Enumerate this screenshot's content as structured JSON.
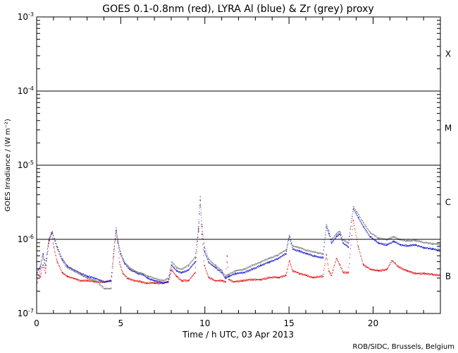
{
  "chart_data": {
    "type": "scatter",
    "title": "GOES 0.1-0.8nm (red), LYRA Al (blue) & Zr (grey) proxy",
    "xlabel": "Time / h UTC, 03 Apr 2013",
    "ylabel": "GOES Irradiance / (W m⁻²)",
    "credit": "ROB/SIDC, Brussels, Belgium",
    "xlim": [
      0,
      24
    ],
    "ylim": [
      1e-07,
      0.001
    ],
    "yscale": "log",
    "x_ticks": [
      {
        "value": 0,
        "label": "0"
      },
      {
        "value": 5,
        "label": "5"
      },
      {
        "value": 10,
        "label": "10"
      },
      {
        "value": 15,
        "label": "15"
      },
      {
        "value": 20,
        "label": "20"
      }
    ],
    "y_ticks": [
      {
        "value": 0.001,
        "base": "10",
        "exp": "-3"
      },
      {
        "value": 0.0001,
        "base": "10",
        "exp": "-4"
      },
      {
        "value": 1e-05,
        "base": "10",
        "exp": "-5"
      },
      {
        "value": 1e-06,
        "base": "10",
        "exp": "-6"
      },
      {
        "value": 1e-07,
        "base": "10",
        "exp": "-7"
      }
    ],
    "flare_class_lines": [
      1e-06,
      1e-05,
      0.0001
    ],
    "flare_classes": [
      {
        "label": "X",
        "value": 0.000316
      },
      {
        "label": "M",
        "value": 3.16e-05
      },
      {
        "label": "C",
        "value": 3.16e-06
      },
      {
        "label": "B",
        "value": 3.16e-07
      }
    ],
    "series": [
      {
        "name": "GOES 0.1-0.8nm",
        "color": "#e01010",
        "x": [
          0.0,
          0.2,
          0.35,
          0.5,
          0.7,
          0.85,
          1.0,
          1.2,
          1.5,
          1.8,
          2.2,
          2.6,
          3.0,
          3.5,
          4.0,
          4.4,
          4.55,
          4.7,
          4.8,
          4.9,
          5.1,
          5.4,
          5.8,
          6.2,
          6.5,
          7.0,
          7.5,
          7.8,
          8.0,
          8.3,
          8.6,
          9.0,
          9.4,
          9.6,
          9.7,
          9.8,
          9.95,
          10.2,
          10.6,
          11.0,
          11.2,
          11.3,
          11.4,
          11.7,
          12.2,
          12.8,
          13.3,
          13.9,
          14.4,
          14.8,
          15.0,
          15.2,
          15.6,
          16.0,
          16.4,
          17.0,
          17.2,
          17.35,
          17.5,
          17.8,
          18.0,
          18.2,
          18.5,
          18.8,
          19.1,
          19.4,
          19.8,
          20.3,
          20.8,
          21.1,
          21.5,
          22.0,
          22.5,
          23.0,
          23.5,
          24.0
        ],
        "y": [
          3.4e-07,
          3.2e-07,
          4.6e-07,
          3.6e-07,
          9e-07,
          1.25e-06,
          8e-07,
          5e-07,
          3.6e-07,
          3.2e-07,
          3e-07,
          2.8e-07,
          2.8e-07,
          2.7e-07,
          2.7e-07,
          2.8e-07,
          6e-07,
          1.3e-06,
          9e-07,
          5e-07,
          3.5e-07,
          3e-07,
          2.8e-07,
          2.7e-07,
          2.6e-07,
          2.6e-07,
          2.6e-07,
          2.7e-07,
          3.9e-07,
          3.2e-07,
          2.8e-07,
          2.8e-07,
          3.6e-07,
          1.3e-06,
          3.8e-06,
          1.2e-06,
          4.5e-07,
          3.1e-07,
          2.8e-07,
          2.8e-07,
          2.7e-07,
          6e-07,
          2.9e-07,
          2.7e-07,
          2.8e-07,
          2.9e-07,
          2.9e-07,
          3.1e-07,
          3.1e-07,
          3.3e-07,
          5.2e-07,
          3.8e-07,
          3.5e-07,
          3.3e-07,
          3.1e-07,
          3.2e-07,
          6.2e-07,
          3.8e-07,
          3.3e-07,
          5.6e-07,
          4.6e-07,
          3.6e-07,
          3.6e-07,
          1.8e-06,
          8e-07,
          4.6e-07,
          4e-07,
          3.8e-07,
          4e-07,
          5.2e-07,
          4.3e-07,
          3.8e-07,
          3.5e-07,
          3.5e-07,
          3.4e-07,
          3.3e-07
        ]
      },
      {
        "name": "LYRA Al proxy",
        "color": "#1a1ad0",
        "x": [
          0.0,
          0.2,
          0.35,
          0.5,
          0.7,
          0.9,
          1.2,
          1.5,
          1.8,
          2.2,
          2.6,
          3.0,
          3.5,
          4.0,
          4.4,
          4.55,
          4.7,
          4.8,
          4.95,
          5.2,
          5.5,
          6.0,
          6.3,
          6.6,
          7.0,
          7.5,
          7.8,
          8.0,
          8.3,
          8.6,
          9.0,
          9.4,
          9.6,
          9.7,
          9.8,
          9.95,
          10.2,
          10.6,
          11.0,
          11.2,
          11.4,
          11.8,
          12.3,
          12.8,
          13.3,
          13.8,
          14.3,
          14.8,
          15.0,
          15.2,
          15.6,
          16.0,
          16.5,
          17.0,
          17.2,
          17.35,
          17.5,
          17.8,
          18.0,
          18.2,
          18.5,
          18.8,
          19.1,
          19.4,
          19.8,
          20.3,
          20.8,
          21.2,
          21.6,
          22.0,
          22.5,
          23.0,
          23.5,
          24.0
        ],
        "y": [
          3.6e-07,
          4.4e-07,
          6.5e-07,
          4.6e-07,
          1e-06,
          1.25e-06,
          8e-07,
          5.5e-07,
          4.4e-07,
          3.9e-07,
          3.5e-07,
          3.2e-07,
          3e-07,
          2.7e-07,
          2.8e-07,
          6.5e-07,
          1.35e-06,
          9.5e-07,
          6.5e-07,
          4.8e-07,
          4e-07,
          3.5e-07,
          3.4e-07,
          3e-07,
          2.8e-07,
          2.6e-07,
          2.7e-07,
          4.5e-07,
          3.8e-07,
          3.6e-07,
          3.9e-07,
          5e-07,
          1.4e-06,
          3.4e-06,
          1.5e-06,
          7e-07,
          5e-07,
          4.2e-07,
          3.6e-07,
          3e-07,
          3.2e-07,
          3.5e-07,
          3.6e-07,
          4e-07,
          4.5e-07,
          5e-07,
          5.5e-07,
          6.5e-07,
          1.1e-06,
          7.5e-07,
          7e-07,
          6.5e-07,
          6e-07,
          5.7e-07,
          1.5e-06,
          1.2e-06,
          9e-07,
          1.1e-06,
          1.2e-06,
          9e-07,
          8e-07,
          2.6e-06,
          2e-06,
          1.5e-06,
          1.1e-06,
          9e-07,
          8.5e-07,
          9.5e-07,
          8.5e-07,
          8.3e-07,
          8.5e-07,
          7.8e-07,
          7.5e-07,
          7.2e-07
        ]
      },
      {
        "name": "LYRA Zr proxy",
        "color": "#808080",
        "x": [
          0.0,
          0.2,
          0.35,
          0.5,
          0.7,
          0.9,
          1.2,
          1.5,
          1.8,
          2.2,
          2.6,
          3.0,
          3.5,
          4.0,
          4.4,
          4.55,
          4.7,
          4.8,
          4.95,
          5.2,
          5.5,
          6.0,
          6.3,
          6.6,
          7.0,
          7.5,
          7.8,
          8.0,
          8.3,
          8.6,
          9.0,
          9.4,
          9.6,
          9.7,
          9.8,
          9.95,
          10.2,
          10.6,
          11.0,
          11.2,
          11.4,
          11.8,
          12.3,
          12.8,
          13.3,
          13.8,
          14.3,
          14.8,
          15.0,
          15.2,
          15.6,
          16.0,
          16.5,
          17.0,
          17.2,
          17.35,
          17.5,
          17.8,
          18.0,
          18.2,
          18.5,
          18.8,
          19.1,
          19.4,
          19.8,
          20.3,
          20.8,
          21.2,
          21.6,
          22.0,
          22.5,
          23.0,
          23.5,
          24.0
        ],
        "y": [
          2.6e-07,
          4e-07,
          6e-07,
          4.2e-07,
          9.5e-07,
          1.3e-06,
          7.5e-07,
          5.2e-07,
          4.2e-07,
          3.8e-07,
          3.4e-07,
          3e-07,
          2.8e-07,
          2.2e-07,
          2.2e-07,
          6e-07,
          1.45e-06,
          1e-06,
          7e-07,
          5e-07,
          4.2e-07,
          3.6e-07,
          3.5e-07,
          3.2e-07,
          3e-07,
          2.8e-07,
          3e-07,
          5e-07,
          4.2e-07,
          4e-07,
          4.5e-07,
          5.8e-07,
          1.5e-06,
          3.8e-06,
          1.6e-06,
          8e-07,
          5.5e-07,
          4.5e-07,
          3.8e-07,
          3.2e-07,
          3.4e-07,
          3.8e-07,
          4e-07,
          4.5e-07,
          5e-07,
          5.6e-07,
          6.2e-07,
          7.2e-07,
          1.15e-06,
          8.2e-07,
          7.8e-07,
          7.2e-07,
          6.8e-07,
          6.4e-07,
          1.6e-06,
          1.3e-06,
          1e-06,
          1.2e-06,
          1.3e-06,
          1e-06,
          9e-07,
          2.8e-06,
          2.2e-06,
          1.7e-06,
          1.25e-06,
          1.05e-06,
          1e-06,
          1.1e-06,
          1e-06,
          9.6e-07,
          9.8e-07,
          9.2e-07,
          8.8e-07,
          8.6e-07
        ]
      }
    ]
  }
}
